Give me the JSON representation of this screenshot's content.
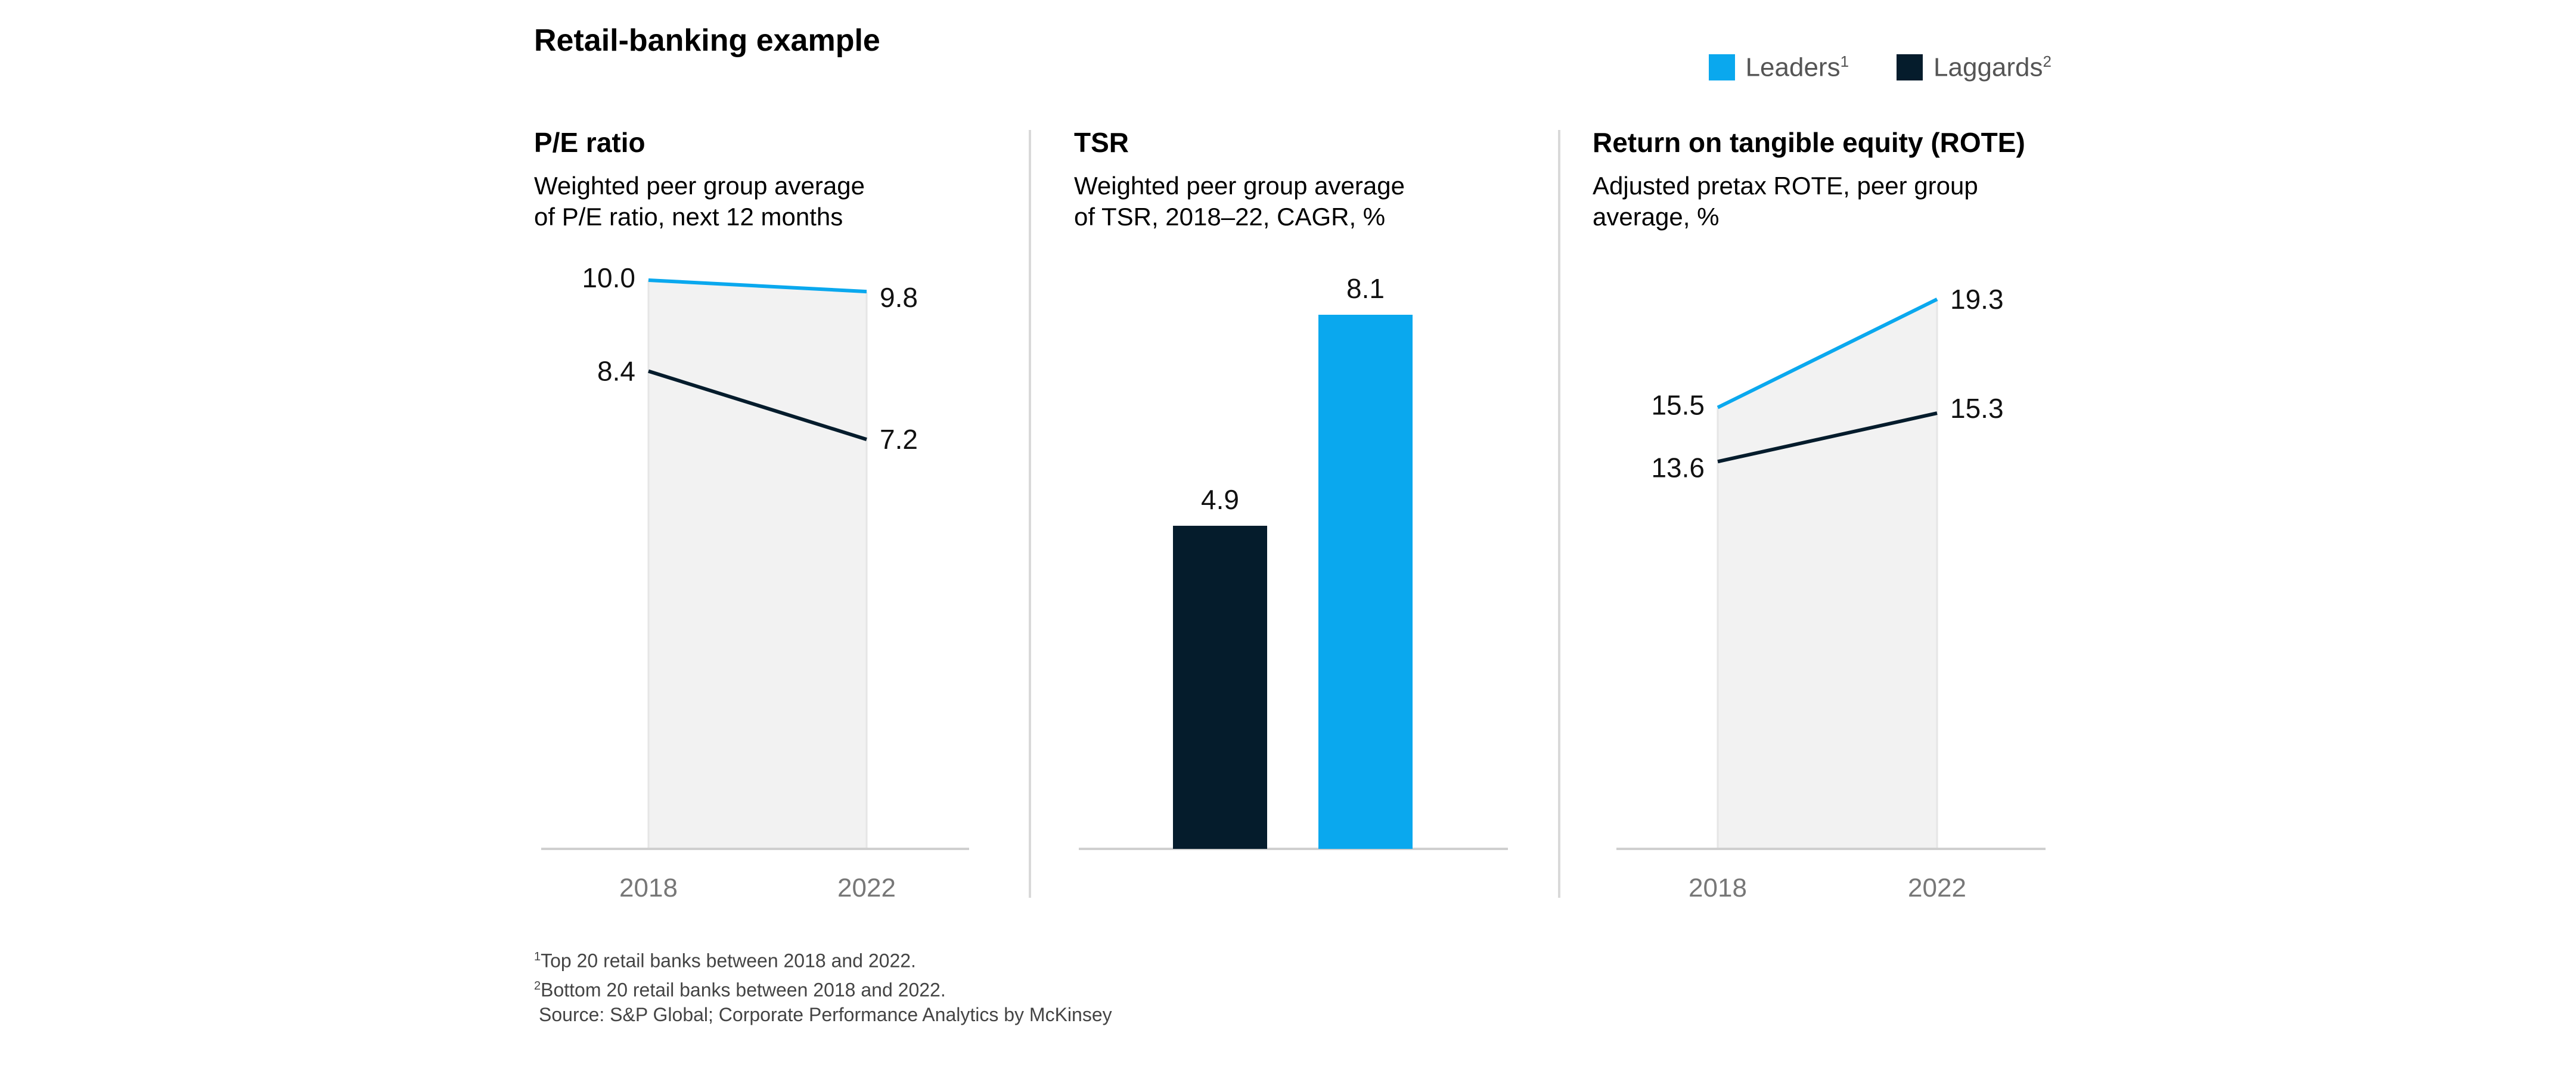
{
  "title": "Retail-banking example",
  "legend": [
    {
      "label": "Leaders",
      "sup": "1",
      "color": "#0AA8EE"
    },
    {
      "label": "Laggards",
      "sup": "2",
      "color": "#051C2C"
    }
  ],
  "chart_data": [
    {
      "type": "line",
      "title": "P/E ratio",
      "subtitle_line1": "Weighted peer group average",
      "subtitle_line2": "of P/E ratio, next 12 months",
      "x": [
        "2018",
        "2022"
      ],
      "series": [
        {
          "name": "Leaders",
          "values": [
            10.0,
            9.8
          ],
          "labels": [
            "10.0",
            "9.8"
          ]
        },
        {
          "name": "Laggards",
          "values": [
            8.4,
            7.2
          ],
          "labels": [
            "8.4",
            "7.2"
          ]
        }
      ],
      "ylim": [
        0,
        10.0
      ],
      "grid": false
    },
    {
      "type": "bar",
      "title": "TSR",
      "subtitle_line1": "Weighted peer group average",
      "subtitle_line2": "of TSR, 2018–22, CAGR, %",
      "categories": [
        "Laggards",
        "Leaders"
      ],
      "values": [
        4.9,
        8.1
      ],
      "labels": [
        "4.9",
        "8.1"
      ],
      "ylim": [
        0,
        8.1
      ],
      "grid": false
    },
    {
      "type": "line",
      "title": "Return on tangible equity (ROTE)",
      "subtitle_line1": "Adjusted pretax ROTE, peer group",
      "subtitle_line2": "average, %",
      "x": [
        "2018",
        "2022"
      ],
      "series": [
        {
          "name": "Leaders",
          "values": [
            15.5,
            19.3
          ],
          "labels": [
            "15.5",
            "19.3"
          ]
        },
        {
          "name": "Laggards",
          "values": [
            13.6,
            15.3
          ],
          "labels": [
            "13.6",
            "15.3"
          ]
        }
      ],
      "ylim": [
        0,
        19.3
      ],
      "grid": false
    }
  ],
  "footnotes": [
    {
      "sup": "1",
      "text": "Top 20 retail banks between 2018 and 2022."
    },
    {
      "sup": "2",
      "text": "Bottom 20 retail banks between 2018 and 2022."
    }
  ],
  "source": "Source: S&P Global; Corporate Performance Analytics by McKinsey"
}
